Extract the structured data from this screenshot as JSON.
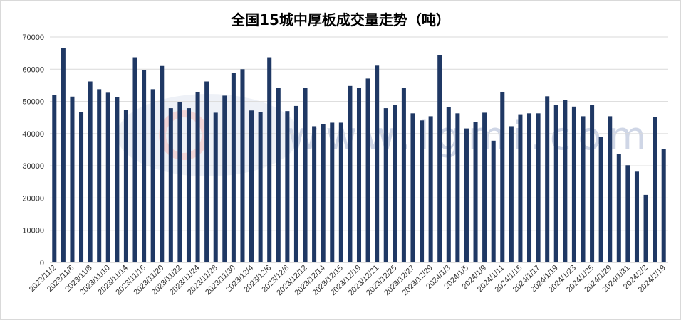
{
  "chart_data": {
    "type": "bar",
    "title": "全国15城中厚板成交量走势（吨）",
    "ylim": [
      0,
      70000
    ],
    "yticks": [
      0,
      10000,
      20000,
      30000,
      40000,
      50000,
      60000,
      70000
    ],
    "grid": true,
    "bar_color": "#1f3864",
    "watermark": "www.lgmi.com",
    "x_tick_labels": [
      "2023/11/2",
      "2023/11/6",
      "2023/11/8",
      "2023/11/10",
      "2023/11/14",
      "2023/11/16",
      "2023/11/20",
      "2023/11/22",
      "2023/11/24",
      "2023/11/28",
      "2023/11/30",
      "2023/12/4",
      "2023/12/6",
      "2023/12/8",
      "2023/12/12",
      "2023/12/14",
      "2023/12/15",
      "2023/12/19",
      "2023/12/21",
      "2023/12/25",
      "2023/12/27",
      "2023/12/29",
      "2024/1/3",
      "2024/1/5",
      "2024/1/9",
      "2024/1/11",
      "2024/1/15",
      "2024/1/17",
      "2024/1/19",
      "2024/1/23",
      "2024/1/25",
      "2024/1/29",
      "2024/1/31",
      "2024/2/2",
      "2024/2/19"
    ],
    "values": [
      52000,
      66500,
      51500,
      46700,
      56200,
      53800,
      52700,
      51300,
      47400,
      63700,
      59700,
      53800,
      61000,
      47900,
      49800,
      47900,
      53000,
      56200,
      46500,
      51800,
      58900,
      60000,
      47200,
      46800,
      63700,
      54100,
      47000,
      48600,
      54100,
      42300,
      43000,
      43400,
      43400,
      54800,
      54100,
      57100,
      61100,
      47900,
      48800,
      54100,
      46300,
      44100,
      45400,
      64300,
      48200,
      46300,
      41600,
      43700,
      46500,
      37800,
      53000,
      42300,
      45800,
      46300,
      46300,
      51600,
      48800,
      50500,
      48400,
      45400,
      48900,
      38900,
      45400,
      33600,
      30200,
      28200,
      21000,
      45100,
      35300
    ]
  }
}
